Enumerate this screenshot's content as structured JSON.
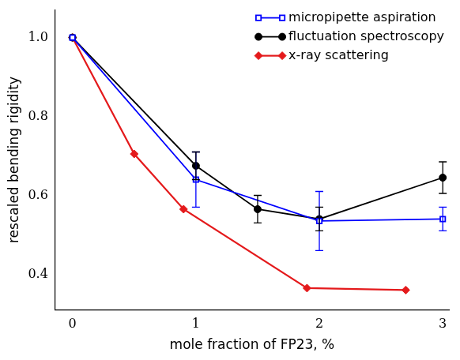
{
  "chart_data": {
    "type": "line",
    "x_label": "mole fraction of FP23, %",
    "y_label": "rescaled bending rigidity",
    "xlim": [
      -0.14,
      3.05
    ],
    "xticks": [
      0,
      1,
      2,
      3
    ],
    "ylim": [
      0.31,
      1.07
    ],
    "yticks": [
      0.4,
      0.6,
      0.8,
      {
        "value": 1,
        "label": "1.0"
      }
    ],
    "grid": false,
    "legend": "top right",
    "series": [
      {
        "name": "micropipette aspiration",
        "color": "#0000ff",
        "marker": "open square",
        "line_style": "solid",
        "x": [
          0,
          1,
          2,
          3
        ],
        "values": [
          1.0,
          0.64,
          0.535,
          0.54
        ],
        "errors": [
          0,
          0.07,
          0.075,
          0.03
        ]
      },
      {
        "name": "fluctuation spectroscopy",
        "color": "#000000",
        "marker": "circle",
        "line_style": "solid",
        "x": [
          0,
          1,
          1.5,
          2,
          3
        ],
        "values": [
          1.0,
          0.675,
          0.565,
          0.54,
          0.645
        ],
        "errors": [
          0,
          0.035,
          0.035,
          0.03,
          0.04
        ]
      },
      {
        "name": "x-ray scattering",
        "color": "#e41a1c",
        "marker": "diamond",
        "line_style": "solid",
        "x": [
          0,
          0.5,
          0.9,
          1.9,
          2.7
        ],
        "values": [
          1.0,
          0.705,
          0.565,
          0.365,
          0.36
        ]
      }
    ]
  }
}
